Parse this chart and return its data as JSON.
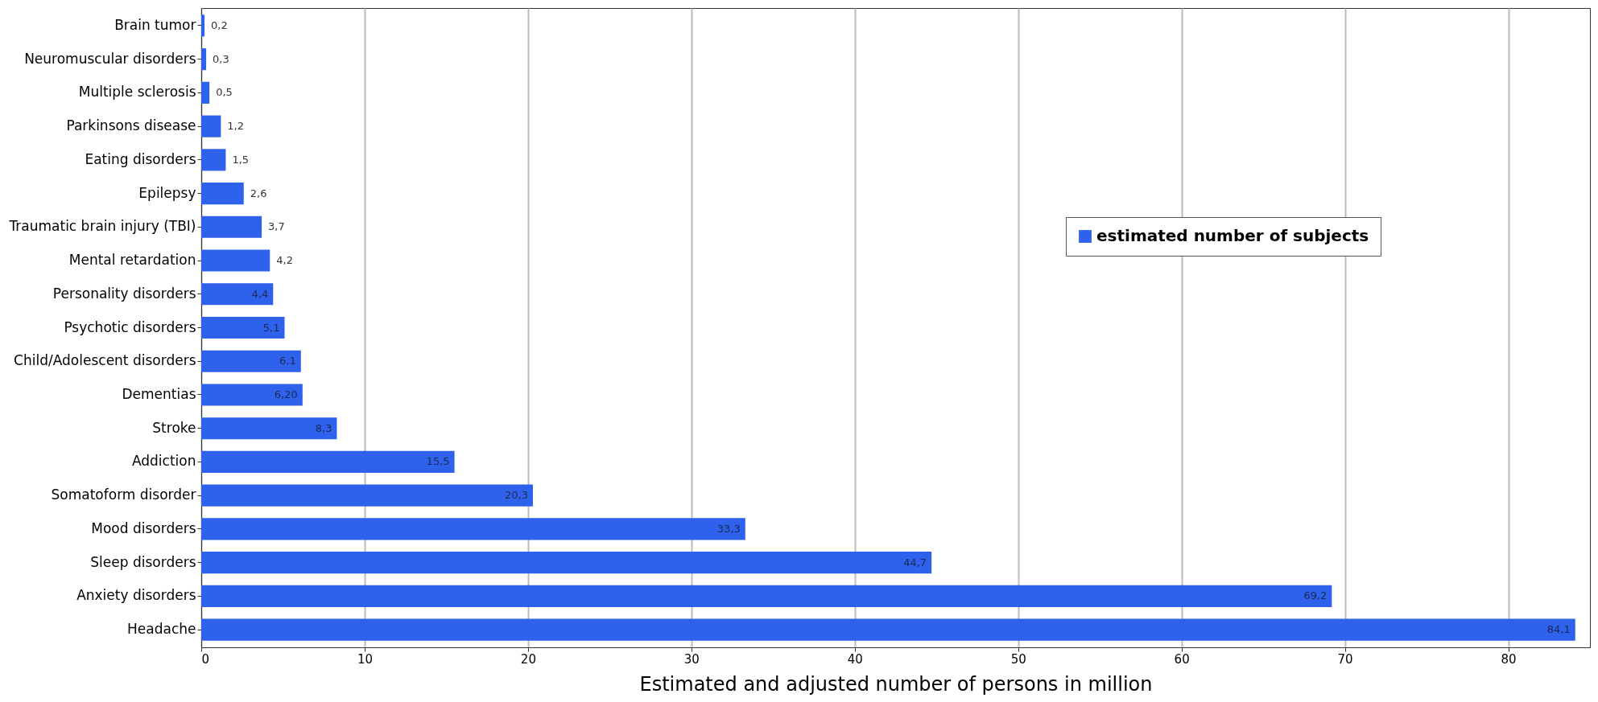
{
  "chart_data": {
    "type": "bar",
    "orientation": "horizontal",
    "xlabel": "Estimated and adjusted number of persons in million",
    "categories": [
      "Brain tumor",
      "Neuromuscular disorders",
      "Multiple sclerosis",
      "Parkinsons disease",
      "Eating disorders",
      "Epilepsy",
      "Traumatic brain injury (TBI)",
      "Mental retardation",
      "Personality disorders",
      "Psychotic disorders",
      "Child/Adolescent disorders",
      "Dementias",
      "Stroke",
      "Addiction",
      "Somatoform disorder",
      "Mood disorders",
      "Sleep disorders",
      "Anxiety disorders",
      "Headache"
    ],
    "series": [
      {
        "name": "estimated number of subjects",
        "color": "#2f62ec",
        "values": [
          0.2,
          0.3,
          0.5,
          1.2,
          1.5,
          2.6,
          3.7,
          4.2,
          4.4,
          5.1,
          6.1,
          6.2,
          8.3,
          15.5,
          20.3,
          33.3,
          44.7,
          69.2,
          84.1
        ],
        "value_labels": [
          "0,2",
          "0,3",
          "0,5",
          "1,2",
          "1,5",
          "2,6",
          "3,7",
          "4,2",
          "4,4",
          "5,1",
          "6,1",
          "6,20",
          "8,3",
          "15,5",
          "20,3",
          "33,3",
          "44,7",
          "69,2",
          "84,1"
        ]
      }
    ],
    "xlim": [
      0,
      85
    ],
    "xticks": [
      0,
      10,
      20,
      30,
      40,
      50,
      60,
      70,
      80
    ],
    "grid": "x",
    "legend": "top right"
  }
}
